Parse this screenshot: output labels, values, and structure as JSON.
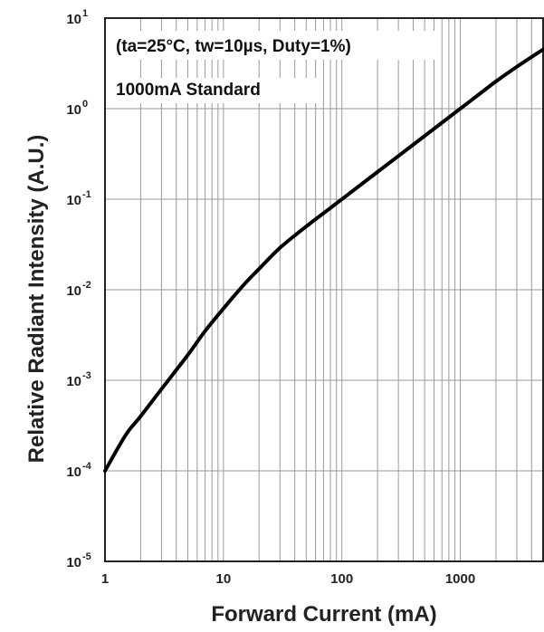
{
  "chart_data": {
    "type": "line",
    "title": "",
    "xlabel": "Forward Current (mA)",
    "ylabel": "Relative Radiant Intensity (A.U.)",
    "x_scale": "log",
    "y_scale": "log",
    "xlim": [
      1,
      5000
    ],
    "ylim": [
      1e-05,
      10
    ],
    "grid": true,
    "x_ticks": [
      {
        "value": 1,
        "label": "1"
      },
      {
        "value": 10,
        "label": "10"
      },
      {
        "value": 100,
        "label": "100"
      },
      {
        "value": 1000,
        "label": "1000"
      }
    ],
    "y_ticks": [
      {
        "value": 10,
        "base": "10",
        "exp": "1"
      },
      {
        "value": 1,
        "base": "10",
        "exp": "0"
      },
      {
        "value": 0.1,
        "base": "10",
        "exp": "-1"
      },
      {
        "value": 0.01,
        "base": "10",
        "exp": "-2"
      },
      {
        "value": 0.001,
        "base": "10",
        "exp": "-3"
      },
      {
        "value": 0.0001,
        "base": "10",
        "exp": "-4"
      },
      {
        "value": 1e-05,
        "base": "10",
        "exp": "-5"
      }
    ],
    "annotations": [
      "(ta=25°C, tw=10µs, Duty=1%)",
      "1000mA Standard"
    ],
    "series": [
      {
        "color": "#000000",
        "x": [
          1,
          1.5,
          2,
          3,
          5,
          7,
          10,
          15,
          20,
          30,
          50,
          70,
          100,
          150,
          200,
          300,
          500,
          700,
          1000,
          1500,
          2000,
          3000,
          5000
        ],
        "y": [
          0.0001,
          0.00025,
          0.0004,
          0.0008,
          0.0019,
          0.0035,
          0.0062,
          0.0115,
          0.017,
          0.029,
          0.05,
          0.07,
          0.1,
          0.15,
          0.2,
          0.3,
          0.5,
          0.7,
          1.0,
          1.5,
          2.0,
          2.9,
          4.5
        ]
      }
    ]
  }
}
